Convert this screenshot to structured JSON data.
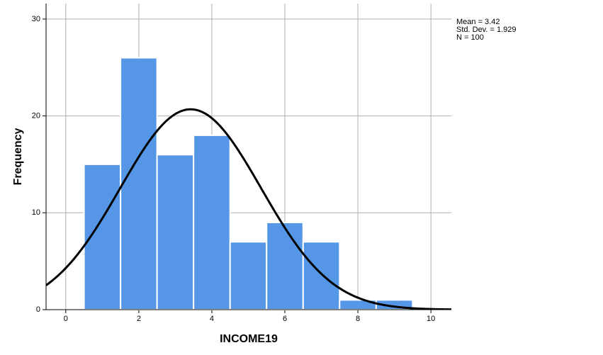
{
  "chart_data": {
    "type": "histogram",
    "xlabel": "INCOME19",
    "ylabel": "Frequency",
    "bins": [
      0.5,
      1.5,
      2.5,
      3.5,
      4.5,
      5.5,
      6.5,
      7.5,
      8.5,
      9.5
    ],
    "values": [
      15,
      26,
      16,
      18,
      7,
      9,
      7,
      1,
      1
    ],
    "color": "#5596e6",
    "xlim": [
      -0.54,
      10.56
    ],
    "xticks": [
      0,
      2,
      4,
      6,
      8,
      10
    ],
    "ylim": [
      0,
      31.6
    ],
    "yticks": [
      0,
      10,
      20,
      30
    ],
    "grid": true,
    "normal_curve": true,
    "stats": [
      {
        "value": 3.42,
        "label": "Mean = 3.42"
      },
      {
        "value": 1.929,
        "label": "Std. Dev. = 1.929"
      },
      {
        "value": 100,
        "label": "N = 100"
      }
    ]
  }
}
